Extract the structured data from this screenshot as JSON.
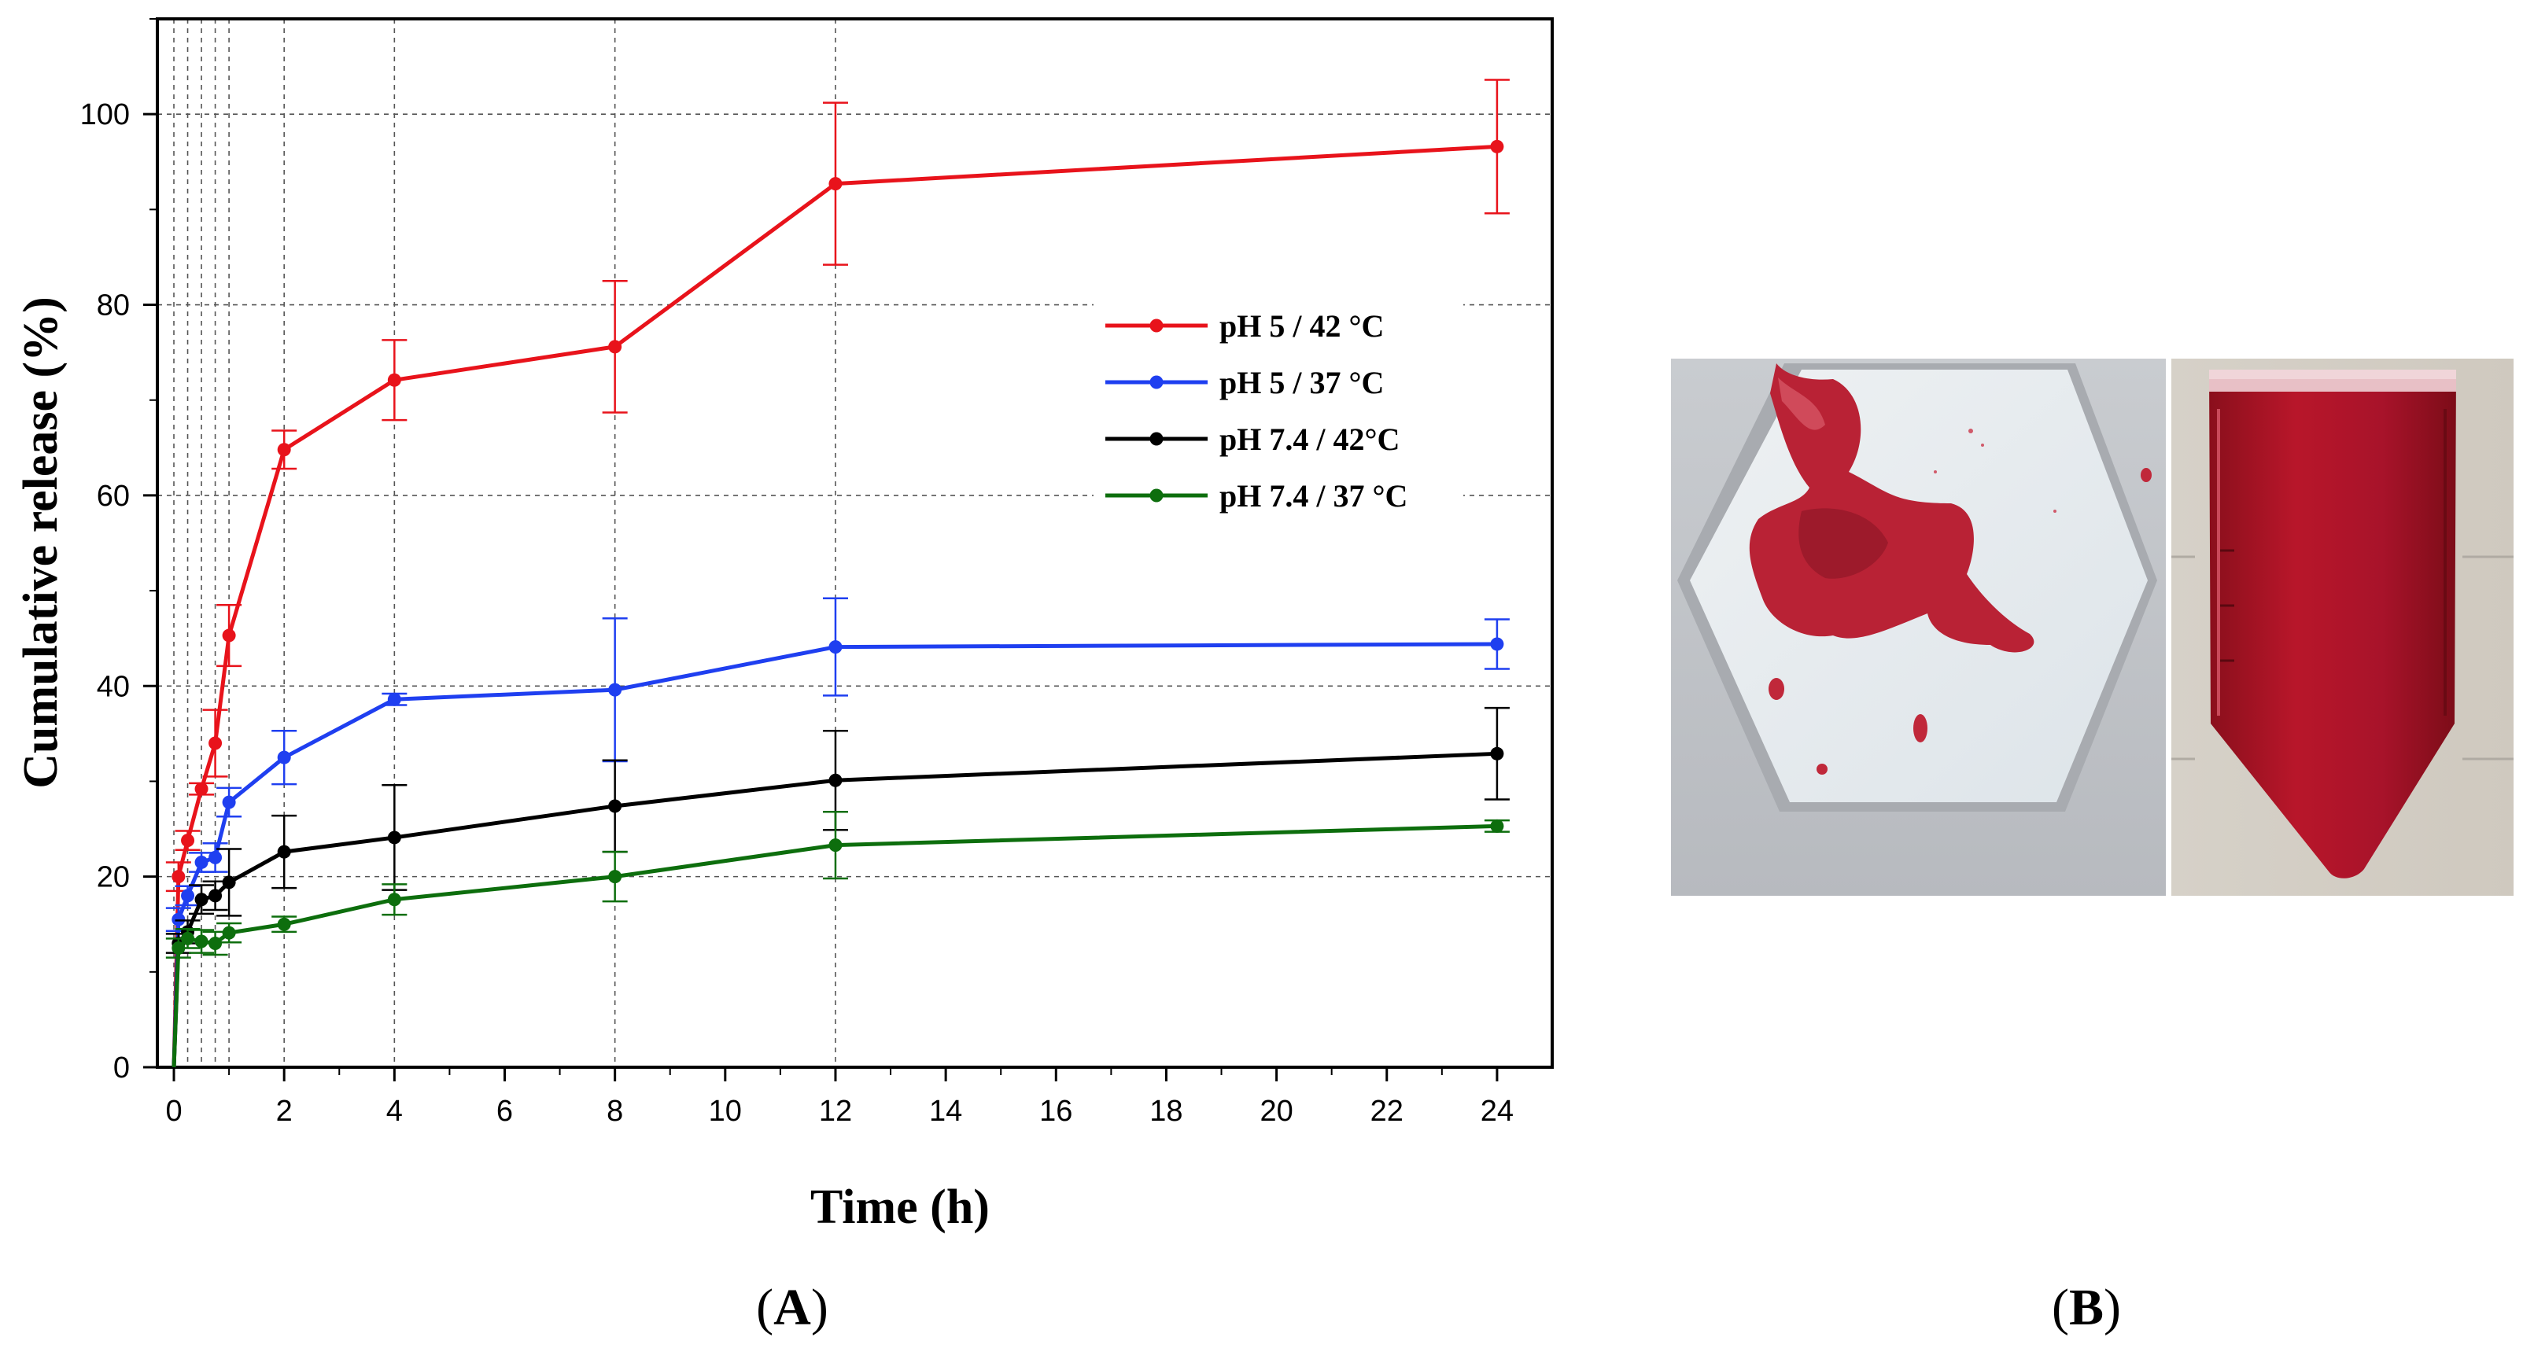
{
  "panels": {
    "a_label": "A",
    "b_label": "B"
  },
  "photo": {
    "left_subject": "red drug-loaded foam pieces on a white hexagonal weighing boat",
    "right_subject": "conical centrifuge tube filled with red release medium"
  },
  "chart_data": {
    "type": "line",
    "xlabel": "Time (h)",
    "ylabel": "Cumulative release (%)",
    "xlim": [
      -0.3,
      25
    ],
    "ylim": [
      0,
      110
    ],
    "xticks": [
      0,
      2,
      4,
      6,
      8,
      10,
      12,
      14,
      16,
      18,
      20,
      22,
      24
    ],
    "yticks": [
      0,
      20,
      40,
      60,
      80,
      100
    ],
    "vertical_gridlines_at": [
      0,
      0.25,
      0.5,
      0.75,
      1,
      2,
      4,
      8,
      12
    ],
    "horizontal_gridlines_at": [
      20,
      40,
      60,
      80,
      100
    ],
    "legend_position": "center-right",
    "series": [
      {
        "name": "pH 5 / 42 °C",
        "color": "#e8131b",
        "points": [
          {
            "x": 0,
            "y": 0,
            "err": 0
          },
          {
            "x": 0.083,
            "y": 20.0,
            "err": 1.5
          },
          {
            "x": 0.25,
            "y": 23.8,
            "err": 1.0
          },
          {
            "x": 0.5,
            "y": 29.2,
            "err": 0.6
          },
          {
            "x": 0.75,
            "y": 34.0,
            "err": 3.5
          },
          {
            "x": 1,
            "y": 45.3,
            "err": 3.2
          },
          {
            "x": 2,
            "y": 64.8,
            "err": 2.0
          },
          {
            "x": 4,
            "y": 72.1,
            "err": 4.2
          },
          {
            "x": 8,
            "y": 75.6,
            "err": 6.9
          },
          {
            "x": 12,
            "y": 92.7,
            "err": 8.5
          },
          {
            "x": 24,
            "y": 96.6,
            "err": 7.0
          }
        ]
      },
      {
        "name": "pH 5 / 37 °C",
        "color": "#1f3ff0",
        "points": [
          {
            "x": 0,
            "y": 0,
            "err": 0
          },
          {
            "x": 0.083,
            "y": 15.5,
            "err": 1.2
          },
          {
            "x": 0.25,
            "y": 18.0,
            "err": 1.0
          },
          {
            "x": 0.5,
            "y": 21.5,
            "err": 1.0
          },
          {
            "x": 0.75,
            "y": 22.0,
            "err": 1.5
          },
          {
            "x": 1,
            "y": 27.8,
            "err": 1.5
          },
          {
            "x": 2,
            "y": 32.5,
            "err": 2.8
          },
          {
            "x": 4,
            "y": 38.6,
            "err": 0.6
          },
          {
            "x": 8,
            "y": 39.6,
            "err": 7.5
          },
          {
            "x": 12,
            "y": 44.1,
            "err": 5.1
          },
          {
            "x": 24,
            "y": 44.4,
            "err": 2.6
          }
        ]
      },
      {
        "name": "pH 7.4 / 42°C",
        "color": "#000000",
        "points": [
          {
            "x": 0,
            "y": 0,
            "err": 0
          },
          {
            "x": 0.083,
            "y": 13.0,
            "err": 1.0
          },
          {
            "x": 0.25,
            "y": 14.2,
            "err": 1.2
          },
          {
            "x": 0.5,
            "y": 17.6,
            "err": 1.5
          },
          {
            "x": 0.75,
            "y": 18.0,
            "err": 1.5
          },
          {
            "x": 1,
            "y": 19.4,
            "err": 3.5
          },
          {
            "x": 2,
            "y": 22.6,
            "err": 3.8
          },
          {
            "x": 4,
            "y": 24.1,
            "err": 5.5
          },
          {
            "x": 8,
            "y": 27.4,
            "err": 4.8
          },
          {
            "x": 12,
            "y": 30.1,
            "err": 5.2
          },
          {
            "x": 24,
            "y": 32.9,
            "err": 4.8
          }
        ]
      },
      {
        "name": "pH 7.4 / 37 °C",
        "color": "#0d6e0d",
        "points": [
          {
            "x": 0,
            "y": 0,
            "err": 0
          },
          {
            "x": 0.083,
            "y": 12.5,
            "err": 1.0
          },
          {
            "x": 0.25,
            "y": 13.5,
            "err": 1.0
          },
          {
            "x": 0.5,
            "y": 13.2,
            "err": 1.2
          },
          {
            "x": 0.75,
            "y": 13.0,
            "err": 1.2
          },
          {
            "x": 1,
            "y": 14.1,
            "err": 1.0
          },
          {
            "x": 2,
            "y": 15.0,
            "err": 0.8
          },
          {
            "x": 4,
            "y": 17.6,
            "err": 1.6
          },
          {
            "x": 8,
            "y": 20.0,
            "err": 2.6
          },
          {
            "x": 12,
            "y": 23.3,
            "err": 3.5
          },
          {
            "x": 24,
            "y": 25.3,
            "err": 0.6
          }
        ]
      }
    ]
  }
}
